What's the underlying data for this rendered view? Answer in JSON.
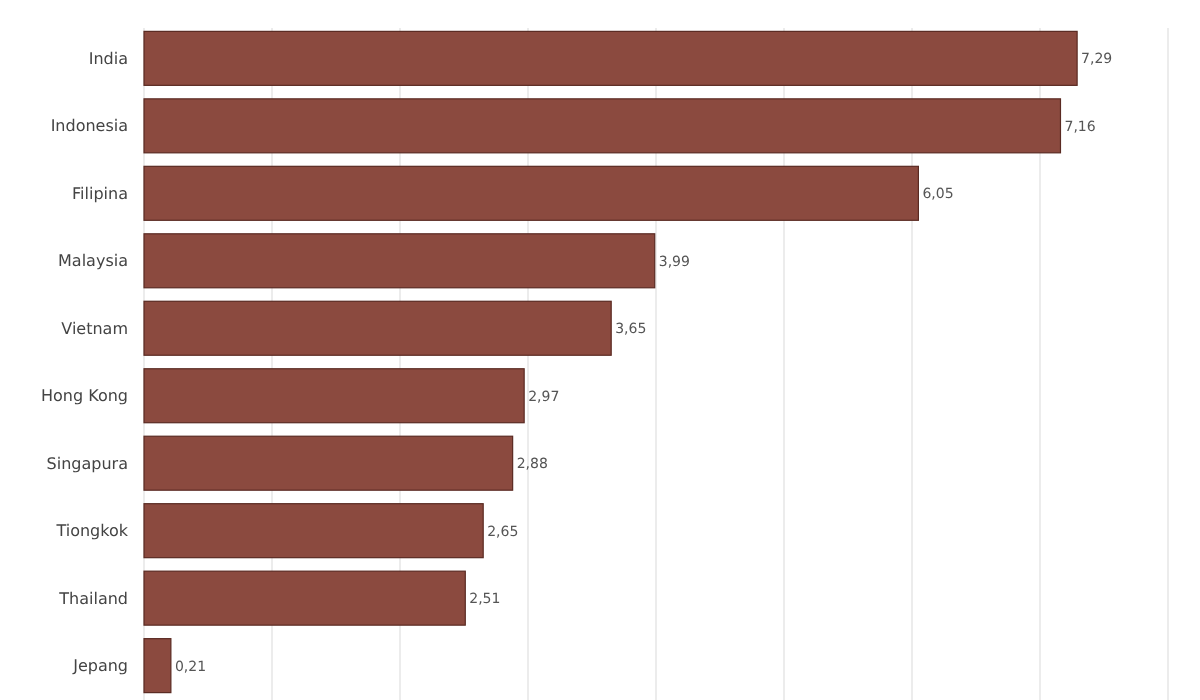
{
  "chart_data": {
    "type": "bar",
    "orientation": "horizontal",
    "categories": [
      "India",
      "Indonesia",
      "Filipina",
      "Malaysia",
      "Vietnam",
      "Hong Kong",
      "Singapura",
      "Tiongkok",
      "Thailand",
      "Jepang"
    ],
    "values": [
      7.29,
      7.16,
      6.05,
      3.99,
      3.65,
      2.97,
      2.88,
      2.65,
      2.51,
      0.21
    ],
    "value_labels": [
      "7,29",
      "7,16",
      "6,05",
      "3,99",
      "3,65",
      "2,97",
      "2,88",
      "2,65",
      "2,51",
      "0,21"
    ],
    "color": "#8b4a3f",
    "xticks": [
      {
        "value": 0,
        "label": null
      },
      {
        "value": 1,
        "label": null
      },
      {
        "value": 2,
        "label": null
      },
      {
        "value": 3,
        "label": null
      },
      {
        "value": 4,
        "label": null
      },
      {
        "value": 5,
        "label": null
      },
      {
        "value": 6,
        "label": null
      },
      {
        "value": 7,
        "label": null
      },
      {
        "value": 8,
        "label": null
      }
    ],
    "tick_labels": "y",
    "grid": "x"
  }
}
